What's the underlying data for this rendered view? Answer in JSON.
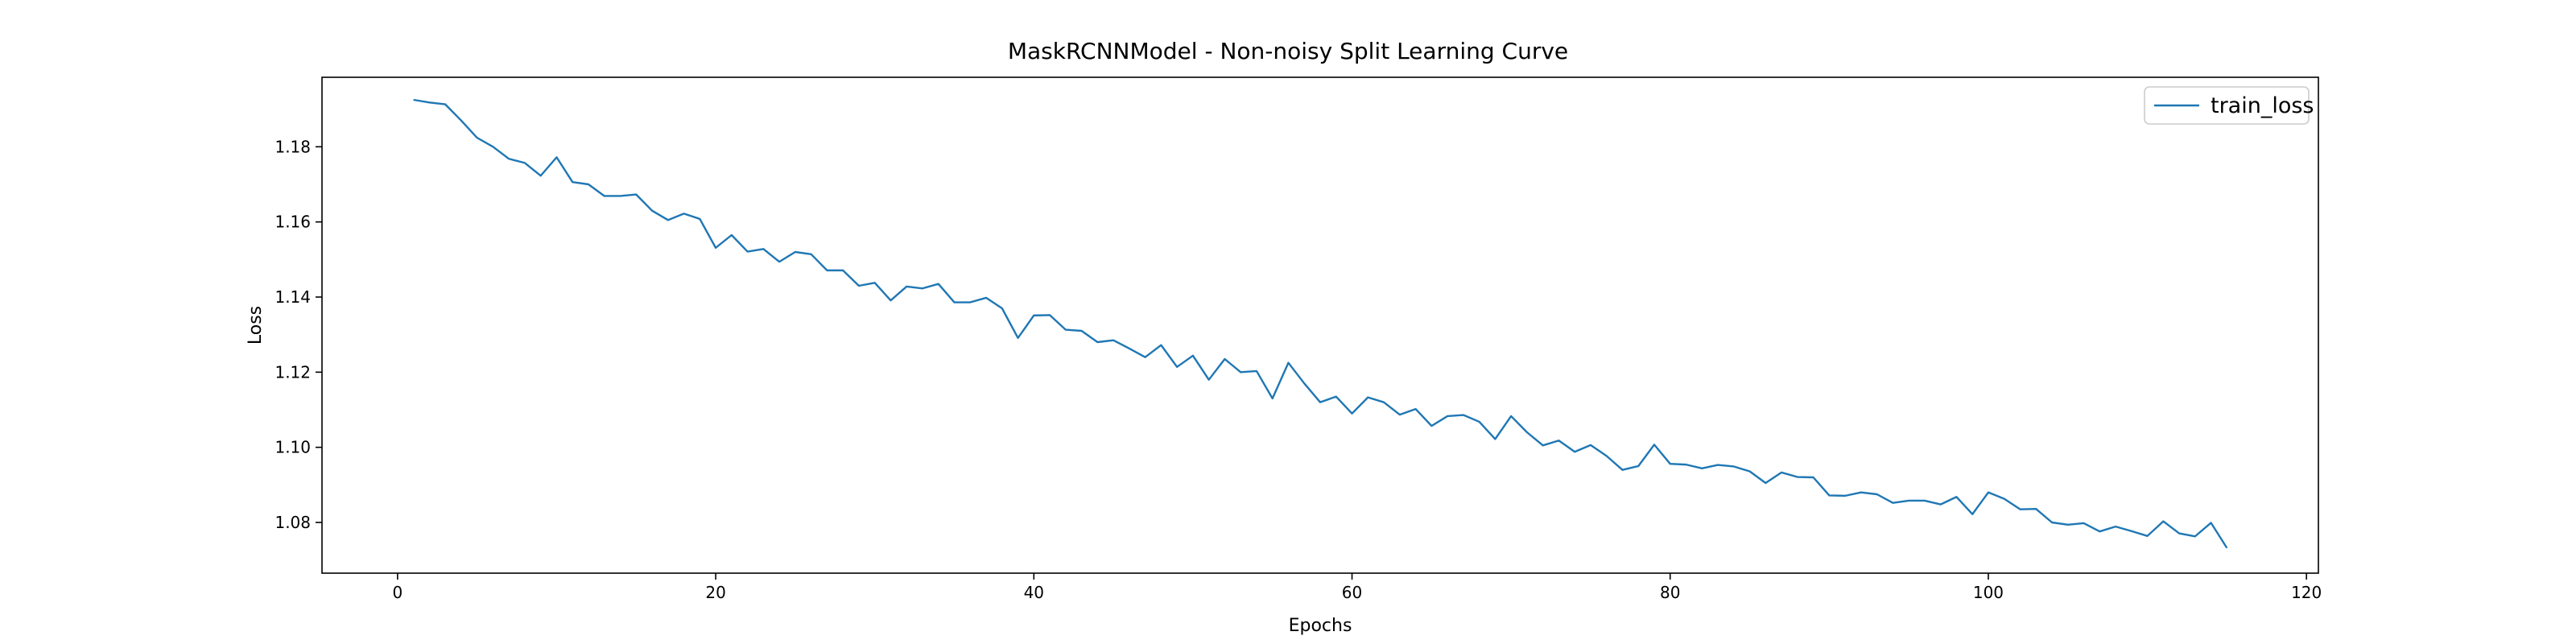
{
  "chart_data": {
    "type": "line",
    "title": "MaskRCNNModel - Non-noisy Split Learning Curve",
    "xlabel": "Epochs",
    "ylabel": "Loss",
    "xlim": [
      -4.75,
      120.75
    ],
    "ylim": [
      1.0665,
      1.1985
    ],
    "xticks": [
      0,
      20,
      40,
      60,
      80,
      100,
      120
    ],
    "yticks": [
      1.08,
      1.1,
      1.12,
      1.14,
      1.16,
      1.18
    ],
    "ytick_labels": [
      "1.08",
      "1.10",
      "1.12",
      "1.14",
      "1.16",
      "1.18"
    ],
    "grid": false,
    "legend": {
      "loc": "upper right",
      "entries": [
        "train_loss"
      ]
    },
    "series": [
      {
        "name": "train_loss",
        "color": "#1f77b4",
        "x": [
          1,
          2,
          3,
          4,
          5,
          6,
          7,
          8,
          9,
          10,
          11,
          12,
          13,
          14,
          15,
          16,
          17,
          18,
          19,
          20,
          21,
          22,
          23,
          24,
          25,
          26,
          27,
          28,
          29,
          30,
          31,
          32,
          33,
          34,
          35,
          36,
          37,
          38,
          39,
          40,
          41,
          42,
          43,
          44,
          45,
          46,
          47,
          48,
          49,
          50,
          51,
          52,
          53,
          54,
          55,
          56,
          57,
          58,
          59,
          60,
          61,
          62,
          63,
          64,
          65,
          66,
          67,
          68,
          69,
          70,
          71,
          72,
          73,
          74,
          75,
          76,
          77,
          78,
          79,
          80,
          81,
          82,
          83,
          84,
          85,
          86,
          87,
          88,
          89,
          90,
          91,
          92,
          93,
          94,
          95,
          96,
          97,
          98,
          99,
          100,
          101,
          102,
          103,
          104,
          105,
          106,
          107,
          108,
          109,
          110,
          111,
          112,
          113,
          114,
          115
        ],
        "values": [
          1.1925,
          1.1918,
          1.1913,
          1.187,
          1.1824,
          1.18,
          1.1768,
          1.1757,
          1.1723,
          1.1772,
          1.1706,
          1.17,
          1.1669,
          1.1669,
          1.1673,
          1.163,
          1.1605,
          1.1622,
          1.1608,
          1.1531,
          1.1565,
          1.1521,
          1.1528,
          1.1494,
          1.152,
          1.1514,
          1.1471,
          1.1471,
          1.143,
          1.1438,
          1.1391,
          1.1428,
          1.1423,
          1.1435,
          1.1386,
          1.1386,
          1.1398,
          1.137,
          1.1291,
          1.1351,
          1.1352,
          1.1313,
          1.131,
          1.128,
          1.1285,
          1.1263,
          1.124,
          1.1272,
          1.1214,
          1.1244,
          1.118,
          1.1235,
          1.12,
          1.1203,
          1.113,
          1.1225,
          1.117,
          1.112,
          1.1135,
          1.109,
          1.1133,
          1.112,
          1.1087,
          1.1102,
          1.1057,
          1.1083,
          1.1086,
          1.1068,
          1.1022,
          1.1083,
          1.104,
          1.1005,
          1.1018,
          1.0988,
          1.1006,
          1.0977,
          1.094,
          1.095,
          1.1007,
          1.0956,
          1.0954,
          1.0944,
          1.0953,
          1.0949,
          1.0936,
          1.0905,
          1.0933,
          1.0921,
          1.092,
          1.0872,
          1.0871,
          1.088,
          1.0875,
          1.0852,
          1.0858,
          1.0858,
          1.0848,
          1.0868,
          1.0822,
          1.088,
          1.0863,
          1.0835,
          1.0836,
          1.08,
          1.0794,
          1.0798,
          1.0776,
          1.0789,
          1.0777,
          1.0764,
          1.0803,
          1.0771,
          1.0763,
          1.0799,
          1.0732
        ]
      }
    ]
  }
}
